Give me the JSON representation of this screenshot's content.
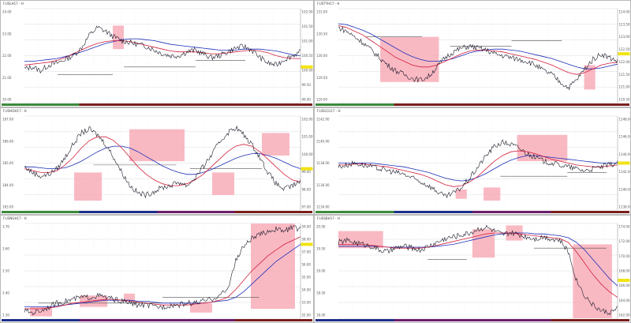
{
  "colors": {
    "price": "#1a1a2a",
    "ma_fast": "#d4203c",
    "ma_slow": "#1d2fb8",
    "highlight": "#f7a7b4",
    "level": "#555555",
    "grid": "#dcdcdc",
    "axis_marker": "#f2e313"
  },
  "chart_data": [
    {
      "type": "line",
      "symbol": "F.USLH17 - H",
      "y_ticks": [
        "24.00",
        "23.00",
        "22.00",
        "21.00",
        "20.00"
      ],
      "right_ticks": [
        "102.00",
        "101.50",
        "101.00",
        "100.50",
        "100.00",
        "99.50",
        "99.00"
      ],
      "session_bar": [
        "#3c8a3c",
        "#7a1e1e",
        "#7a1e1e",
        "#7a1e1e"
      ],
      "series": [
        {
          "values": [
            36,
            38,
            34,
            40,
            42,
            46,
            50,
            58,
            72,
            80,
            76,
            70,
            66,
            64,
            62,
            60,
            56,
            52,
            50,
            50,
            54,
            56,
            52,
            48,
            50,
            54,
            58,
            60,
            56,
            48,
            42,
            40,
            46,
            50,
            54
          ]
        },
        {
          "values": [
            40,
            41,
            42,
            43,
            45,
            48,
            52,
            56,
            60,
            63,
            65,
            66,
            66,
            65,
            63,
            61,
            59,
            57,
            55,
            54,
            54,
            54,
            53,
            52,
            52,
            53,
            54,
            55,
            56,
            55,
            53,
            50,
            48,
            47,
            47
          ]
        },
        {
          "values": [
            44,
            44,
            45,
            46,
            47,
            49,
            51,
            54,
            57,
            60,
            63,
            65,
            67,
            68,
            68,
            67,
            66,
            64,
            62,
            61,
            60,
            59,
            58,
            57,
            56,
            56,
            56,
            57,
            57,
            57,
            56,
            55,
            53,
            51,
            50
          ]
        }
      ],
      "highlights": [
        [
          0.32,
          0.36,
          57,
          82
        ]
      ],
      "levels": [
        [
          0.12,
          0.32,
          30
        ],
        [
          0.36,
          0.62,
          38
        ],
        [
          0.62,
          0.8,
          45
        ]
      ],
      "marker": 38
    },
    {
      "type": "line",
      "symbol": "F.USTYH17 - H",
      "y_ticks": [
        "131.00",
        "130.50",
        "130.00",
        "129.50",
        "129.00"
      ],
      "right_ticks": [
        "124.00",
        "123.50",
        "123.00",
        "122.50",
        "122.00",
        "121.50",
        "121.00",
        "120.50"
      ],
      "session_bar": [
        "#3c8a3c",
        "#7a1e1e",
        "#7a1e1e",
        "#7a1e1e"
      ],
      "series": [
        {
          "values": [
            80,
            76,
            70,
            64,
            56,
            48,
            40,
            34,
            30,
            26,
            24,
            28,
            38,
            48,
            54,
            58,
            60,
            58,
            56,
            52,
            50,
            48,
            46,
            44,
            40,
            34,
            30,
            22,
            16,
            24,
            36,
            46,
            52,
            48,
            44
          ]
        },
        {
          "values": [
            82,
            80,
            76,
            72,
            66,
            60,
            54,
            48,
            44,
            40,
            38,
            38,
            40,
            44,
            48,
            52,
            55,
            56,
            56,
            55,
            54,
            52,
            50,
            48,
            46,
            43,
            40,
            36,
            32,
            30,
            32,
            36,
            40,
            42,
            43
          ]
        },
        {
          "values": [
            84,
            83,
            80,
            77,
            73,
            68,
            63,
            58,
            53,
            49,
            46,
            44,
            44,
            45,
            47,
            50,
            53,
            55,
            56,
            57,
            57,
            56,
            55,
            53,
            51,
            49,
            47,
            44,
            41,
            38,
            36,
            36,
            37,
            39,
            41
          ]
        }
      ],
      "highlights": [
        [
          0.15,
          0.36,
          22,
          70
        ],
        [
          0.88,
          0.92,
          14,
          40
        ]
      ],
      "levels": [
        [
          0.1,
          0.3,
          70
        ],
        [
          0.4,
          0.62,
          60
        ],
        [
          0.62,
          0.8,
          66
        ]
      ],
      "marker": 52
    },
    {
      "type": "line",
      "symbol": "F.USHOH17 - H",
      "y_ticks": [
        "187.00",
        "186.00",
        "185.00",
        "184.00",
        "183.00"
      ],
      "right_ticks": [
        "102.00",
        "101.00",
        "100.00",
        "99.00",
        "98.00",
        "97.00"
      ],
      "session_bar": [
        "#3c8a3c",
        "#1d2f8a",
        "#6a1e6a",
        "#7a1e1e"
      ],
      "series": [
        {
          "values": [
            46,
            40,
            36,
            38,
            44,
            56,
            70,
            82,
            86,
            80,
            70,
            56,
            40,
            26,
            18,
            16,
            20,
            24,
            26,
            30,
            26,
            34,
            46,
            58,
            72,
            82,
            88,
            80,
            70,
            56,
            40,
            28,
            22,
            26,
            30
          ]
        },
        {
          "values": [
            44,
            42,
            40,
            40,
            42,
            48,
            56,
            66,
            74,
            78,
            78,
            74,
            66,
            56,
            46,
            38,
            32,
            28,
            26,
            26,
            28,
            32,
            38,
            46,
            54,
            62,
            68,
            70,
            68,
            62,
            54,
            46,
            38,
            32,
            30
          ]
        },
        {
          "values": [
            46,
            46,
            45,
            44,
            44,
            45,
            48,
            52,
            57,
            62,
            66,
            68,
            68,
            66,
            62,
            57,
            52,
            47,
            43,
            40,
            38,
            38,
            40,
            43,
            47,
            51,
            55,
            58,
            60,
            60,
            58,
            55,
            51,
            47,
            44
          ]
        }
      ],
      "highlights": [
        [
          0.18,
          0.28,
          10,
          40
        ],
        [
          0.38,
          0.58,
          52,
          86
        ],
        [
          0.68,
          0.76,
          16,
          40
        ],
        [
          0.86,
          0.96,
          58,
          82
        ]
      ],
      "levels": [
        [
          0.25,
          0.55,
          48
        ],
        [
          0.6,
          0.86,
          44
        ]
      ],
      "marker": 44
    },
    {
      "type": "line",
      "symbol": "F.USGCG17 - H",
      "y_ticks": [
        "1142.00",
        "1140.00",
        "1138.00",
        "1136.00",
        "1134.00"
      ],
      "right_ticks": [
        "1148.00",
        "1146.00",
        "1144.00",
        "1142.00",
        "1140.00",
        "1138.00"
      ],
      "session_bar": [
        "#3c8a3c",
        "#1d2f8a",
        "#6a1e6a",
        "#7a1e1e"
      ],
      "series": [
        {
          "values": [
            46,
            48,
            50,
            48,
            46,
            44,
            42,
            40,
            38,
            34,
            30,
            26,
            20,
            14,
            18,
            24,
            34,
            46,
            58,
            68,
            72,
            70,
            66,
            60,
            56,
            52,
            50,
            48,
            46,
            44,
            42,
            44,
            46,
            48,
            50
          ]
        },
        {
          "values": [
            48,
            48,
            49,
            49,
            48,
            47,
            46,
            44,
            42,
            40,
            38,
            35,
            31,
            27,
            25,
            26,
            30,
            36,
            44,
            52,
            58,
            62,
            63,
            62,
            60,
            57,
            54,
            52,
            50,
            48,
            47,
            46,
            46,
            47,
            48
          ]
        },
        {
          "values": [
            50,
            50,
            50,
            50,
            50,
            49,
            48,
            47,
            46,
            44,
            42,
            40,
            37,
            34,
            32,
            31,
            32,
            35,
            39,
            44,
            49,
            53,
            56,
            58,
            58,
            57,
            56,
            55,
            54,
            53,
            52,
            51,
            50,
            50,
            50
          ]
        }
      ],
      "highlights": [
        [
          0.42,
          0.46,
          12,
          22
        ],
        [
          0.52,
          0.58,
          10,
          24
        ],
        [
          0.64,
          0.82,
          52,
          80
        ]
      ],
      "levels": [
        [
          0.58,
          0.82,
          36
        ],
        [
          0.82,
          0.96,
          40
        ]
      ],
      "marker": 50
    },
    {
      "type": "line",
      "symbol": "F.USNGH17 - H",
      "y_ticks": [
        "3.70",
        "3.60",
        "3.50",
        "3.40",
        "3.30"
      ],
      "right_ticks": [
        "59.00",
        "58.00",
        "57.00",
        "56.00",
        "55.00",
        "54.00",
        "53.00",
        "52.00"
      ],
      "session_bar": [
        "#1d2f8a",
        "#6a1e6a",
        "#6a1e6a",
        "#7a1e1e"
      ],
      "series": [
        {
          "values": [
            8,
            6,
            8,
            12,
            16,
            18,
            20,
            22,
            22,
            24,
            22,
            20,
            18,
            16,
            14,
            14,
            12,
            12,
            14,
            14,
            16,
            16,
            18,
            20,
            24,
            30,
            60,
            76,
            84,
            88,
            92,
            94,
            92,
            96,
            94
          ]
        },
        {
          "values": [
            10,
            10,
            10,
            11,
            12,
            14,
            16,
            17,
            18,
            19,
            20,
            20,
            19,
            18,
            17,
            16,
            15,
            14,
            14,
            14,
            14,
            15,
            16,
            17,
            19,
            22,
            30,
            40,
            50,
            58,
            66,
            72,
            78,
            82,
            86
          ]
        },
        {
          "values": [
            12,
            12,
            12,
            12,
            13,
            14,
            15,
            16,
            17,
            18,
            19,
            19,
            19,
            19,
            18,
            18,
            17,
            16,
            16,
            16,
            16,
            16,
            16,
            17,
            18,
            19,
            22,
            28,
            36,
            44,
            52,
            60,
            66,
            72,
            78
          ]
        }
      ],
      "highlights": [
        [
          0.02,
          0.1,
          2,
          12
        ],
        [
          0.2,
          0.3,
          12,
          24
        ],
        [
          0.36,
          0.4,
          18,
          26
        ],
        [
          0.6,
          0.68,
          6,
          16
        ],
        [
          0.82,
          0.98,
          10,
          100
        ]
      ],
      "levels": [
        [
          0.05,
          0.5,
          16
        ],
        [
          0.5,
          0.85,
          22
        ]
      ],
      "marker": 78
    },
    {
      "type": "line",
      "symbol": "F.USSBH17 - H",
      "y_ticks": [
        "20.00",
        "19.50",
        "19.00",
        "18.50",
        "18.00"
      ],
      "right_ticks": [
        "174.00",
        "172.00",
        "170.00",
        "168.00",
        "166.00",
        "164.00",
        "162.00"
      ],
      "session_bar": [
        "#1d2f8a",
        "#6a1e6a",
        "#6a1e6a",
        "#7a1e1e"
      ],
      "series": [
        {
          "values": [
            80,
            82,
            80,
            78,
            76,
            72,
            70,
            74,
            76,
            74,
            72,
            76,
            80,
            84,
            86,
            88,
            90,
            94,
            96,
            92,
            88,
            90,
            88,
            86,
            84,
            86,
            84,
            82,
            70,
            40,
            24,
            14,
            8,
            6,
            10
          ]
        },
        {
          "values": [
            78,
            78,
            78,
            78,
            77,
            76,
            75,
            74,
            74,
            74,
            74,
            75,
            77,
            79,
            81,
            83,
            85,
            87,
            89,
            90,
            90,
            90,
            89,
            88,
            87,
            86,
            85,
            84,
            80,
            70,
            58,
            46,
            36,
            28,
            22
          ]
        },
        {
          "values": [
            76,
            76,
            76,
            76,
            76,
            76,
            75,
            75,
            75,
            75,
            75,
            75,
            76,
            77,
            78,
            80,
            82,
            84,
            86,
            88,
            89,
            90,
            90,
            90,
            89,
            89,
            88,
            87,
            85,
            80,
            72,
            62,
            52,
            42,
            34
          ]
        }
      ],
      "highlights": [
        [
          0.0,
          0.16,
          74,
          92
        ],
        [
          0.48,
          0.56,
          64,
          94
        ],
        [
          0.6,
          0.66,
          82,
          98
        ],
        [
          0.84,
          0.98,
          0,
          78
        ]
      ],
      "levels": [
        [
          0.32,
          0.46,
          62
        ],
        [
          0.7,
          0.96,
          74
        ]
      ],
      "marker": 40
    }
  ]
}
